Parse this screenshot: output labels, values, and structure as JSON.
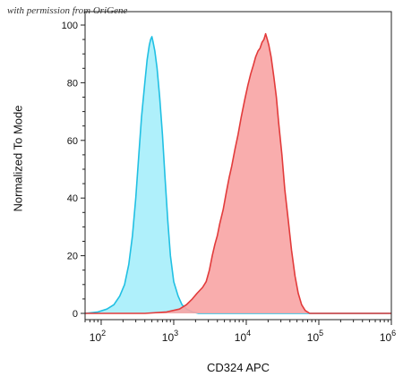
{
  "watermark_text": "with permission from OriGene",
  "chart_data": {
    "type": "area",
    "title": "",
    "xlabel": "CD324 APC",
    "ylabel": "Normalized To Mode",
    "x_scale": "log",
    "xlim": [
      60,
      1000000
    ],
    "ylim": [
      0,
      100
    ],
    "x_ticks": [
      {
        "value": 100,
        "base": "10",
        "exp": "2"
      },
      {
        "value": 1000,
        "base": "10",
        "exp": "3"
      },
      {
        "value": 10000,
        "base": "10",
        "exp": "4"
      },
      {
        "value": 100000,
        "base": "10",
        "exp": "5"
      },
      {
        "value": 1000000,
        "base": "10",
        "exp": "6"
      }
    ],
    "y_ticks": [
      0,
      20,
      40,
      60,
      80,
      100
    ],
    "grid": false,
    "legend": "none",
    "series": [
      {
        "color": "#21c0e3",
        "fill": "#a6eefb",
        "points": [
          [
            60,
            0
          ],
          [
            90,
            0.5
          ],
          [
            120,
            1.5
          ],
          [
            150,
            3
          ],
          [
            180,
            6
          ],
          [
            210,
            10
          ],
          [
            240,
            17
          ],
          [
            270,
            27
          ],
          [
            300,
            40
          ],
          [
            330,
            55
          ],
          [
            360,
            68
          ],
          [
            400,
            80
          ],
          [
            430,
            88
          ],
          [
            460,
            93
          ],
          [
            480,
            95
          ],
          [
            500,
            96
          ],
          [
            520,
            94
          ],
          [
            550,
            91
          ],
          [
            590,
            85
          ],
          [
            640,
            75
          ],
          [
            700,
            62
          ],
          [
            760,
            47
          ],
          [
            830,
            32
          ],
          [
            900,
            20
          ],
          [
            1000,
            11
          ],
          [
            1150,
            6
          ],
          [
            1300,
            3
          ],
          [
            1500,
            1.5
          ],
          [
            1800,
            0.5
          ],
          [
            2200,
            0
          ],
          [
            1000000,
            0
          ]
        ]
      },
      {
        "color": "#e23b3b",
        "fill": "#f8a4a4",
        "points": [
          [
            60,
            0
          ],
          [
            400,
            0
          ],
          [
            800,
            0.5
          ],
          [
            1200,
            1.5
          ],
          [
            1500,
            3
          ],
          [
            1800,
            5
          ],
          [
            2100,
            7
          ],
          [
            2500,
            9
          ],
          [
            2800,
            11
          ],
          [
            3100,
            15
          ],
          [
            3400,
            20
          ],
          [
            3700,
            24
          ],
          [
            4000,
            27
          ],
          [
            4300,
            31
          ],
          [
            4800,
            36
          ],
          [
            5300,
            42
          ],
          [
            5800,
            47
          ],
          [
            6300,
            51
          ],
          [
            7000,
            57
          ],
          [
            7700,
            62
          ],
          [
            8500,
            68
          ],
          [
            9500,
            74
          ],
          [
            10500,
            79
          ],
          [
            11500,
            83
          ],
          [
            12500,
            86
          ],
          [
            13500,
            89
          ],
          [
            14500,
            91
          ],
          [
            15500,
            92
          ],
          [
            16500,
            94
          ],
          [
            17500,
            95
          ],
          [
            18500,
            97
          ],
          [
            19500,
            95
          ],
          [
            20500,
            93
          ],
          [
            22000,
            89
          ],
          [
            24000,
            82
          ],
          [
            26000,
            75
          ],
          [
            28000,
            66
          ],
          [
            31000,
            55
          ],
          [
            34000,
            43
          ],
          [
            38000,
            32
          ],
          [
            42000,
            22
          ],
          [
            47000,
            13
          ],
          [
            52000,
            7
          ],
          [
            58000,
            3
          ],
          [
            65000,
            1
          ],
          [
            75000,
            0
          ],
          [
            1000000,
            0
          ]
        ]
      }
    ]
  }
}
